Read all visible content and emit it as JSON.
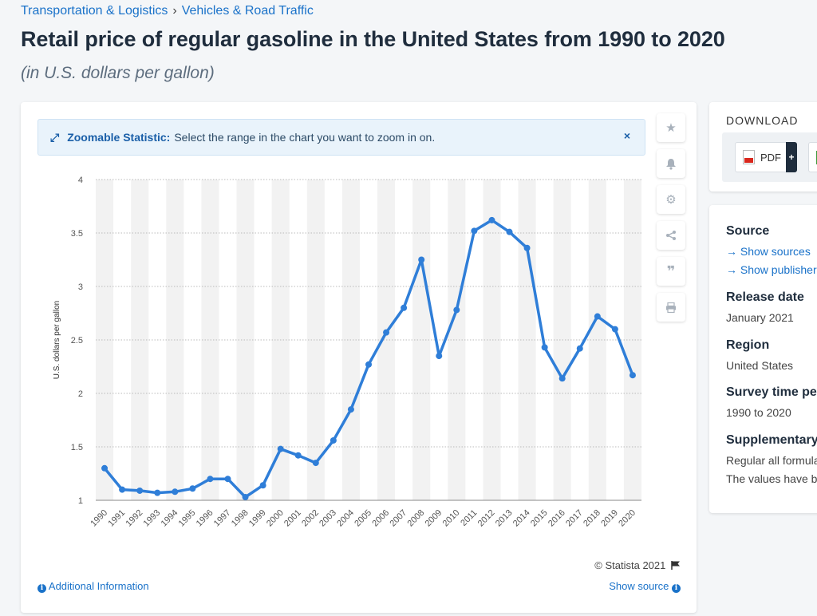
{
  "breadcrumb": {
    "items": [
      "Transportation & Logistics",
      "Vehicles & Road Traffic"
    ],
    "separator": "›"
  },
  "title": "Retail price of regular gasoline in the United States from 1990 to 2020",
  "subtitle": "(in U.S. dollars per gallon)",
  "zoom_banner": {
    "icon": "expand-arrows-icon",
    "label": "Zoomable Statistic:",
    "text": "Select the range in the chart you want to zoom in on.",
    "close": "×"
  },
  "side_tools": [
    {
      "name": "star-icon",
      "glyph": "★"
    },
    {
      "name": "bell-icon",
      "glyph": "🔔"
    },
    {
      "name": "gear-icon",
      "glyph": "⚙"
    },
    {
      "name": "share-icon",
      "glyph": "⋖"
    },
    {
      "name": "quote-icon",
      "glyph": "❞"
    },
    {
      "name": "print-icon",
      "glyph": "⎙"
    }
  ],
  "chart_data": {
    "type": "line",
    "title": "",
    "xlabel": "",
    "ylabel": "U.S. dollars per gallon",
    "x": [
      "1990",
      "1991",
      "1992",
      "1993",
      "1994",
      "1995",
      "1996",
      "1997",
      "1998",
      "1999",
      "2000",
      "2001",
      "2002",
      "2003",
      "2004",
      "2005",
      "2006",
      "2007",
      "2008",
      "2009",
      "2010",
      "2011",
      "2012",
      "2013",
      "2014",
      "2015",
      "2016",
      "2017",
      "2018",
      "2019",
      "2020"
    ],
    "series": [
      {
        "values": [
          1.3,
          1.1,
          1.09,
          1.07,
          1.08,
          1.11,
          1.2,
          1.2,
          1.03,
          1.14,
          1.48,
          1.42,
          1.35,
          1.56,
          1.85,
          2.27,
          2.57,
          2.8,
          3.25,
          2.35,
          2.78,
          3.52,
          3.62,
          3.51,
          3.36,
          2.43,
          2.14,
          2.42,
          2.72,
          2.6,
          2.17
        ]
      }
    ],
    "yticks": [
      "1",
      "1.5",
      "2",
      "2.5",
      "3",
      "3.5",
      "4"
    ],
    "ylim": [
      1,
      4
    ],
    "grid": true,
    "line_color": "#2f7ed8",
    "band_color": "#f2f2f2"
  },
  "footer": {
    "copyright": "© Statista 2021",
    "additional_info": "Additional Information",
    "show_source": "Show source"
  },
  "download": {
    "title": "DOWNLOAD",
    "pdf_label": "PDF",
    "pdf_plus": "+"
  },
  "info": {
    "source_heading": "Source",
    "show_sources": "→ Show sources",
    "show_publisher": "→ Show publisher",
    "release_heading": "Release date",
    "release_value": "January 2021",
    "region_heading": "Region",
    "region_value": "United States",
    "survey_heading": "Survey time period",
    "survey_value": "1990 to 2020",
    "supp_heading": "Supplementary notes",
    "supp_line1": "Regular all formulations",
    "supp_line2": "The values have been"
  }
}
